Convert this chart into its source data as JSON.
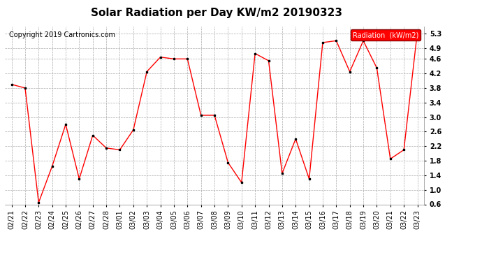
{
  "title": "Solar Radiation per Day KW/m2 20190323",
  "copyright": "Copyright 2019 Cartronics.com",
  "legend_label": "Radiation  (kW/m2)",
  "ylim": [
    0.6,
    5.5
  ],
  "yticks": [
    0.6,
    1.0,
    1.4,
    1.8,
    2.2,
    2.6,
    3.0,
    3.4,
    3.8,
    4.2,
    4.6,
    4.9,
    5.3
  ],
  "line_color": "red",
  "marker_color": "black",
  "background_color": "#ffffff",
  "grid_color": "#aaaaaa",
  "dates": [
    "02/21",
    "02/22",
    "02/23",
    "02/24",
    "02/25",
    "02/26",
    "02/27",
    "02/28",
    "03/01",
    "03/02",
    "03/03",
    "03/04",
    "03/05",
    "03/06",
    "03/07",
    "03/08",
    "03/09",
    "03/10",
    "03/11",
    "03/12",
    "03/13",
    "03/14",
    "03/15",
    "03/16",
    "03/17",
    "03/18",
    "03/19",
    "03/20",
    "03/21",
    "03/22",
    "03/23"
  ],
  "values": [
    3.9,
    3.8,
    0.65,
    1.65,
    2.8,
    1.3,
    2.5,
    2.15,
    2.1,
    2.65,
    4.25,
    4.65,
    4.6,
    4.6,
    3.05,
    3.05,
    1.75,
    1.2,
    4.75,
    4.55,
    1.45,
    2.4,
    1.3,
    5.05,
    5.1,
    4.25,
    5.1,
    4.35,
    1.85,
    2.1,
    5.35
  ],
  "title_fontsize": 11,
  "tick_fontsize": 7,
  "copyright_fontsize": 7,
  "legend_fontsize": 7
}
